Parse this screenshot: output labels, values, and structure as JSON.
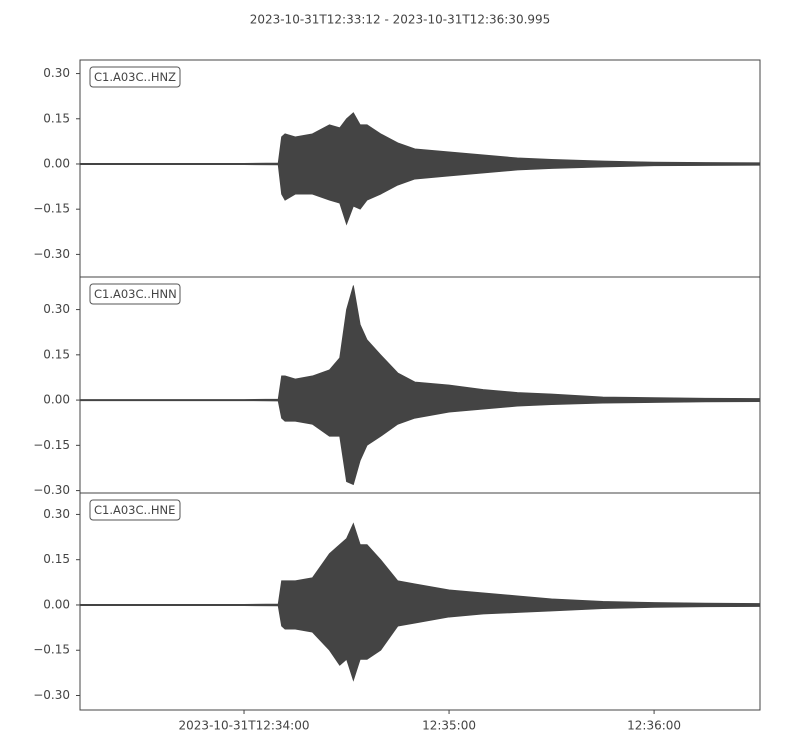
{
  "title": "2023-10-31T12:33:12  -  2023-10-31T12:36:30.995",
  "chart_data": [
    {
      "type": "area",
      "x": [
        "12:33:12",
        "12:34:00",
        "12:34:10",
        "12:34:11",
        "12:34:12",
        "12:34:15",
        "12:34:20",
        "12:34:25",
        "12:34:28",
        "12:34:30",
        "12:34:32",
        "12:34:34",
        "12:34:36",
        "12:34:40",
        "12:34:45",
        "12:34:50",
        "12:35:00",
        "12:35:10",
        "12:35:20",
        "12:35:30",
        "12:35:45",
        "12:36:00",
        "12:36:15",
        "12:36:30.995"
      ],
      "xlim": [
        "12:33:12",
        "12:36:30.995"
      ],
      "ylim": [
        -0.375,
        0.345
      ],
      "yticks": [
        {
          "value": -0.3,
          "label": "−0.30"
        },
        {
          "value": -0.15,
          "label": "−0.15"
        },
        {
          "value": 0,
          "label": "0.00"
        },
        0.15,
        {
          "value": 0.3,
          "label": "0.30"
        }
      ],
      "series": [
        {
          "name": "C1.A03C..HNZ",
          "color": "#444444",
          "values": [
            0.002,
            0.002,
            0.003,
            0.09,
            0.1,
            0.09,
            0.1,
            0.13,
            0.12,
            0.15,
            0.17,
            0.13,
            0.13,
            0.1,
            0.07,
            0.05,
            0.04,
            0.03,
            0.02,
            0.015,
            0.01,
            0.006,
            0.005,
            0.004
          ],
          "lower": [
            -0.002,
            -0.002,
            -0.003,
            -0.1,
            -0.12,
            -0.1,
            -0.1,
            -0.12,
            -0.13,
            -0.2,
            -0.14,
            -0.15,
            -0.12,
            -0.1,
            -0.07,
            -0.05,
            -0.04,
            -0.03,
            -0.02,
            -0.015,
            -0.01,
            -0.006,
            -0.005,
            -0.004
          ]
        }
      ]
    },
    {
      "type": "area",
      "x": [
        "12:33:12",
        "12:34:00",
        "12:34:10",
        "12:34:11",
        "12:34:12",
        "12:34:15",
        "12:34:20",
        "12:34:25",
        "12:34:28",
        "12:34:30",
        "12:34:32",
        "12:34:34",
        "12:34:36",
        "12:34:40",
        "12:34:45",
        "12:34:50",
        "12:35:00",
        "12:35:10",
        "12:35:20",
        "12:35:30",
        "12:35:45",
        "12:36:00",
        "12:36:15",
        "12:36:30.995"
      ],
      "xlim": [
        "12:33:12",
        "12:36:30.995"
      ],
      "ylim": [
        -0.308,
        0.408
      ],
      "yticks": [
        {
          "value": -0.3,
          "label": "−0.30"
        },
        {
          "value": -0.15,
          "label": "−0.15"
        },
        {
          "value": 0,
          "label": "0.00"
        },
        0.15,
        {
          "value": 0.3,
          "label": "0.30"
        }
      ],
      "series": [
        {
          "name": "C1.A03C..HNN",
          "color": "#444444",
          "values": [
            0.002,
            0.002,
            0.003,
            0.08,
            0.08,
            0.07,
            0.08,
            0.1,
            0.14,
            0.3,
            0.38,
            0.25,
            0.2,
            0.15,
            0.09,
            0.06,
            0.05,
            0.035,
            0.025,
            0.02,
            0.01,
            0.008,
            0.006,
            0.005
          ],
          "lower": [
            -0.002,
            -0.002,
            -0.003,
            -0.06,
            -0.07,
            -0.07,
            -0.08,
            -0.12,
            -0.12,
            -0.27,
            -0.28,
            -0.2,
            -0.15,
            -0.12,
            -0.08,
            -0.06,
            -0.04,
            -0.03,
            -0.02,
            -0.015,
            -0.01,
            -0.008,
            -0.006,
            -0.005
          ]
        }
      ]
    },
    {
      "type": "area",
      "x": [
        "12:33:12",
        "12:34:00",
        "12:34:10",
        "12:34:11",
        "12:34:12",
        "12:34:15",
        "12:34:20",
        "12:34:25",
        "12:34:28",
        "12:34:30",
        "12:34:32",
        "12:34:34",
        "12:34:36",
        "12:34:40",
        "12:34:45",
        "12:34:50",
        "12:35:00",
        "12:35:10",
        "12:35:20",
        "12:35:30",
        "12:35:45",
        "12:36:00",
        "12:36:15",
        "12:36:30.995"
      ],
      "xlim": [
        "12:33:12",
        "12:36:30.995"
      ],
      "ylim": [
        -0.348,
        0.371
      ],
      "yticks": [
        {
          "value": -0.3,
          "label": "−0.30"
        },
        {
          "value": -0.15,
          "label": "−0.15"
        },
        {
          "value": 0,
          "label": "0.00"
        },
        0.15,
        {
          "value": 0.3,
          "label": "0.30"
        }
      ],
      "xticks": [
        "2023-10-31T12:34:00",
        "12:35:00",
        "12:36:00"
      ],
      "series": [
        {
          "name": "C1.A03C..HNE",
          "color": "#444444",
          "values": [
            0.002,
            0.002,
            0.003,
            0.08,
            0.08,
            0.08,
            0.09,
            0.17,
            0.2,
            0.22,
            0.27,
            0.2,
            0.2,
            0.15,
            0.08,
            0.07,
            0.05,
            0.04,
            0.03,
            0.02,
            0.012,
            0.008,
            0.006,
            0.005
          ],
          "lower": [
            -0.002,
            -0.002,
            -0.003,
            -0.07,
            -0.08,
            -0.08,
            -0.09,
            -0.15,
            -0.2,
            -0.18,
            -0.25,
            -0.18,
            -0.18,
            -0.15,
            -0.07,
            -0.06,
            -0.04,
            -0.03,
            -0.025,
            -0.02,
            -0.012,
            -0.008,
            -0.006,
            -0.005
          ]
        }
      ]
    }
  ]
}
